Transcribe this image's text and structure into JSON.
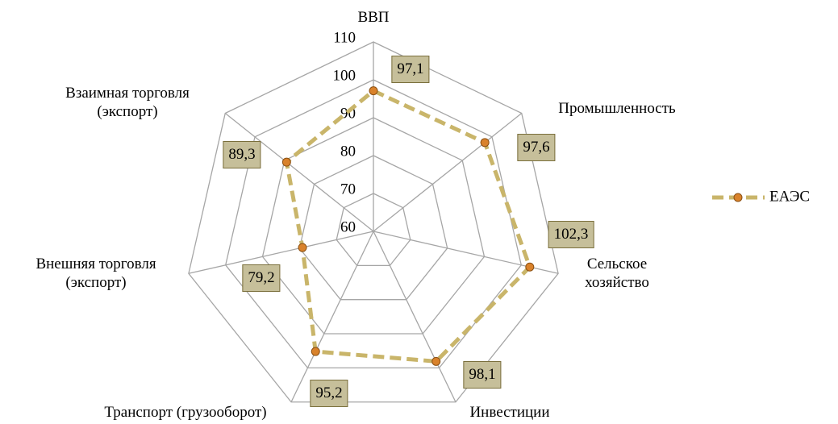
{
  "chart_data": {
    "type": "radar",
    "categories": [
      "ВВП",
      "Промышленность",
      "Сельское хозяйство",
      "Инвестиции",
      "Транспорт (грузооборот)",
      "Внешняя торговля (экспорт)",
      "Взаимная торговля (экспорт)"
    ],
    "series": [
      {
        "name": "ЕАЭС",
        "color": "#c9b56a",
        "marker_color": "#d9822b",
        "values": [
          97.1,
          97.6,
          102.3,
          98.1,
          95.2,
          79.2,
          89.3
        ],
        "value_labels": [
          "97,1",
          "97,6",
          "102,3",
          "98,1",
          "95,2",
          "79,2",
          "89,3"
        ]
      }
    ],
    "ylim": [
      60,
      110
    ],
    "yticks": [
      60,
      70,
      80,
      90,
      100,
      110
    ],
    "grid": true,
    "legend": "right"
  }
}
